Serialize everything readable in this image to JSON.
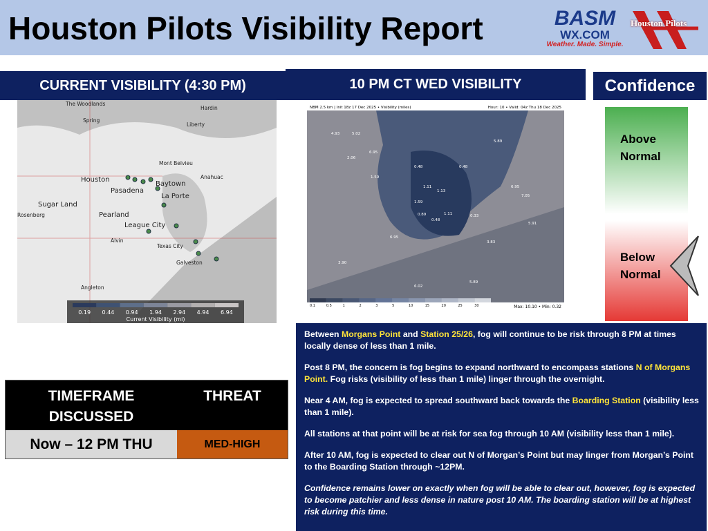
{
  "header": {
    "title": "Houston Pilots Visibility Report",
    "logo_basm": "BASM",
    "logo_wx": "WX.COM",
    "logo_tagline": "Weather. Made. Simple.",
    "logo_pilots": "Houston Pilots"
  },
  "current": {
    "heading": "CURRENT VISIBILITY (4:30 PM)",
    "places": [
      "The Woodlands",
      "Hardin",
      "Spring",
      "Liberty",
      "Mont Belvieu",
      "Anahuac",
      "Houston",
      "Baytown",
      "Pasadena",
      "La Porte",
      "Sugar Land",
      "Rosenberg",
      "Pearland",
      "League City",
      "Alvin",
      "Texas City",
      "Galveston",
      "Angleton"
    ],
    "legend_ticks": [
      "0.19",
      "0.44",
      "0.94",
      "1.94",
      "2.94",
      "4.94",
      "6.94"
    ],
    "legend_label": "Current Visibility (mi)"
  },
  "forecast": {
    "heading": "10 PM CT WED VISIBILITY",
    "model_line": "NBM 2.5 km | Init 18z 17 Dec 2025 • Visibility (miles)",
    "valid_line": "Hour: 10 • Valid: 04z Thu 18 Dec 2025",
    "map_values": [
      "4.93",
      "5.02",
      "6.95",
      "2.06",
      "1.59",
      "0.48",
      "0.48",
      "1.11",
      "1.13",
      "1.59",
      "0.89",
      "1.11",
      "0.33",
      "0.48",
      "5.89",
      "6.95",
      "7.05",
      "5.91",
      "3.83",
      "6.95",
      "5.89",
      "6.02",
      "3.90"
    ],
    "scale_ticks": [
      "0.1",
      "0.5",
      "1",
      "2",
      "3",
      "5",
      "10",
      "15",
      "20",
      "25",
      "30"
    ],
    "max_min": "Max: 10.10 • Min: 0.32"
  },
  "confidence": {
    "heading": "Confidence",
    "above": "Above Normal",
    "below": "Below Normal"
  },
  "table": {
    "headers": [
      "TIMEFRAME DISCUSSED",
      "THREAT"
    ],
    "rows": [
      [
        "Now – 12 PM THU",
        "MED-HIGH"
      ]
    ]
  },
  "discussion": {
    "paragraphs": [
      {
        "italic": false,
        "segments": [
          {
            "text": "Between ",
            "highlight": false
          },
          {
            "text": "Morgans Point",
            "highlight": true
          },
          {
            "text": " and ",
            "highlight": false
          },
          {
            "text": "Station 25/26",
            "highlight": true
          },
          {
            "text": ", fog will continue to be risk through 8 PM at times locally dense of less than 1 mile.",
            "highlight": false
          }
        ]
      },
      {
        "italic": false,
        "segments": [
          {
            "text": "Post 8 PM, the concern is fog begins to expand northward to encompass stations ",
            "highlight": false
          },
          {
            "text": "N of Morgans Point.",
            "highlight": true
          },
          {
            "text": "  Fog risks (visibility of less than 1 mile) linger through the overnight.",
            "highlight": false
          }
        ]
      },
      {
        "italic": false,
        "segments": [
          {
            "text": "Near 4 AM, fog is expected to spread southward back towards the ",
            "highlight": false
          },
          {
            "text": "Boarding Station",
            "highlight": true
          },
          {
            "text": " (visibility less than 1 mile).",
            "highlight": false
          }
        ]
      },
      {
        "italic": false,
        "segments": [
          {
            "text": "All stations at that point will be at risk for sea fog through 10 AM (visibility less than 1 mile).",
            "highlight": false
          }
        ]
      },
      {
        "italic": false,
        "segments": [
          {
            "text": "After 10 AM, fog is expected to clear out N of Morgan’s Point but may linger from Morgan’s Point to the Boarding Station through ~12PM.",
            "highlight": false
          }
        ]
      },
      {
        "italic": true,
        "segments": [
          {
            "text": "Confidence remains lower on exactly when fog will be able to clear out, however, fog is expected to become patchier and less dense in nature post 10 AM. The boarding station will be at highest risk during this time.",
            "highlight": false
          }
        ]
      }
    ]
  }
}
